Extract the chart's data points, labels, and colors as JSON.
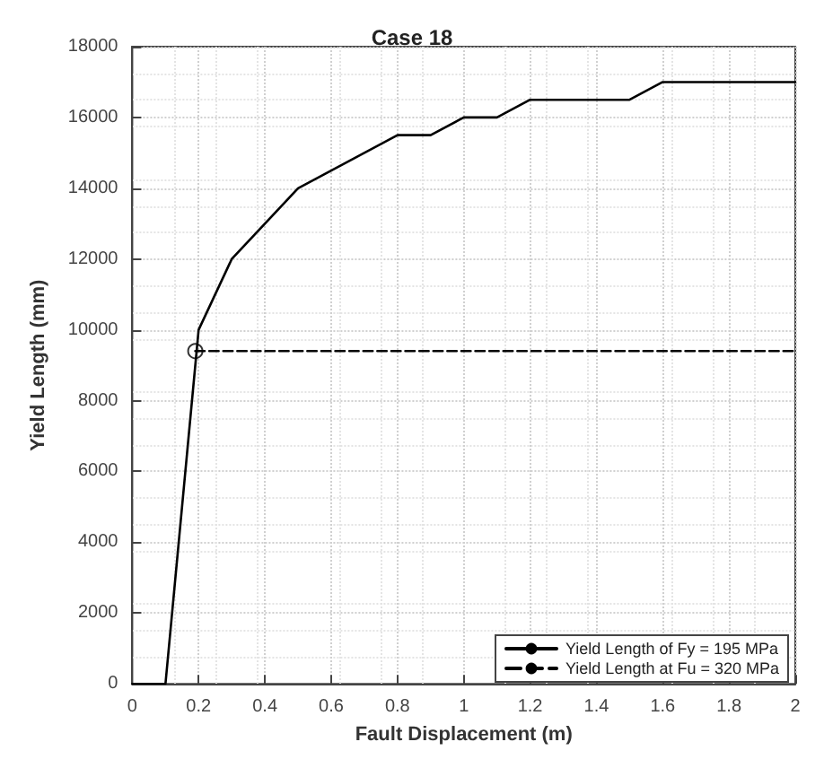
{
  "chart_data": {
    "type": "line",
    "title": "Case 18",
    "xlabel": "Fault Displacement (m)",
    "ylabel": "Yield Length (mm)",
    "xlim": [
      0,
      2
    ],
    "xticks": [
      0,
      0.2,
      0.4,
      0.6,
      0.8,
      1,
      1.2,
      1.4,
      1.6,
      1.8,
      2
    ],
    "ylim": [
      0,
      18000
    ],
    "yticks": [
      0,
      2000,
      4000,
      6000,
      8000,
      10000,
      12000,
      14000,
      16000,
      18000
    ],
    "grid": true,
    "legend": "bottom right",
    "series": [
      {
        "name": "Yield Length of Fy = 195 MPa",
        "color": "#000000",
        "line_style": "solid",
        "x": [
          0,
          0.1,
          0.2,
          0.3,
          0.5,
          0.8,
          0.9,
          1.0,
          1.1,
          1.2,
          1.5,
          1.6,
          2
        ],
        "values": [
          0,
          0,
          10000,
          12000,
          14000,
          15500,
          15500,
          16000,
          16000,
          16500,
          16500,
          17000,
          17000
        ]
      },
      {
        "name": "Yield Length at Fu = 320 MPa",
        "color": "#000000",
        "line_style": "dashed",
        "x": [
          0.19,
          2
        ],
        "values": [
          9400,
          9400
        ]
      },
      {
        "type": "scatter",
        "color": "#000000",
        "marker": "circle",
        "x": [
          0.19
        ],
        "values": [
          9400
        ]
      }
    ]
  }
}
